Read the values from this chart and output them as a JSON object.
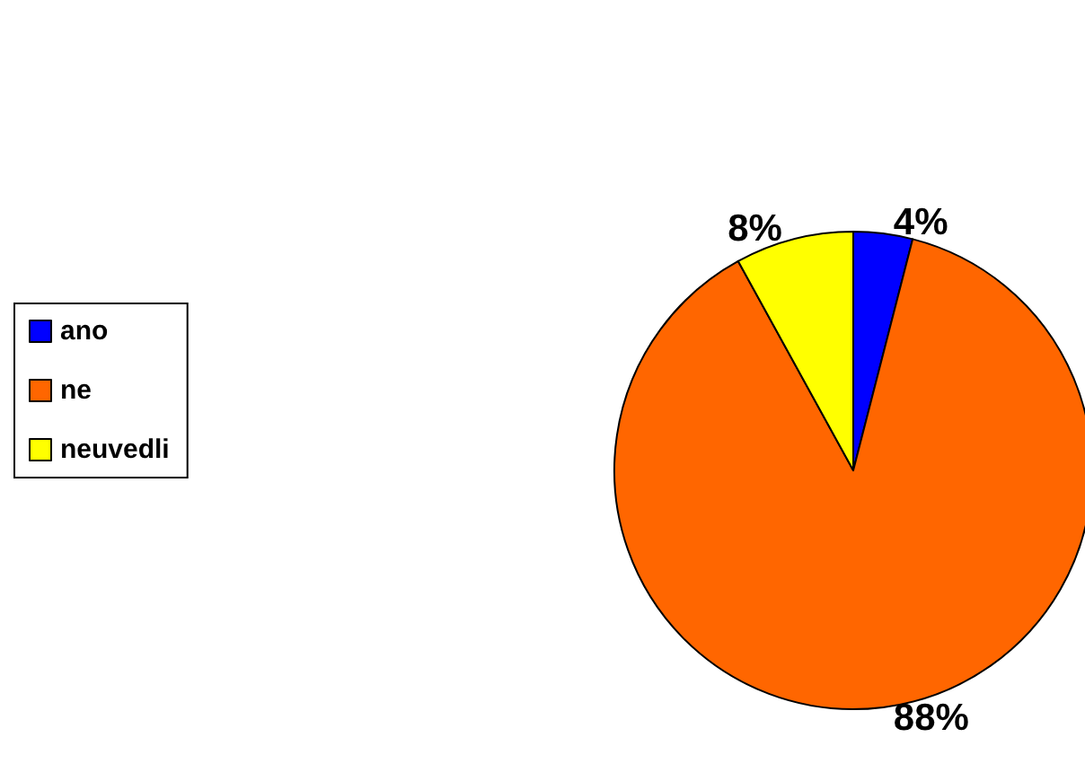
{
  "chart_data": {
    "type": "pie",
    "categories": [
      "ano",
      "ne",
      "neuvedli"
    ],
    "values": [
      4,
      88,
      8
    ],
    "colors": [
      "#0000ff",
      "#ff6600",
      "#ffff00"
    ],
    "value_labels": [
      "4%",
      "88%",
      "8%"
    ],
    "legend": "left"
  }
}
